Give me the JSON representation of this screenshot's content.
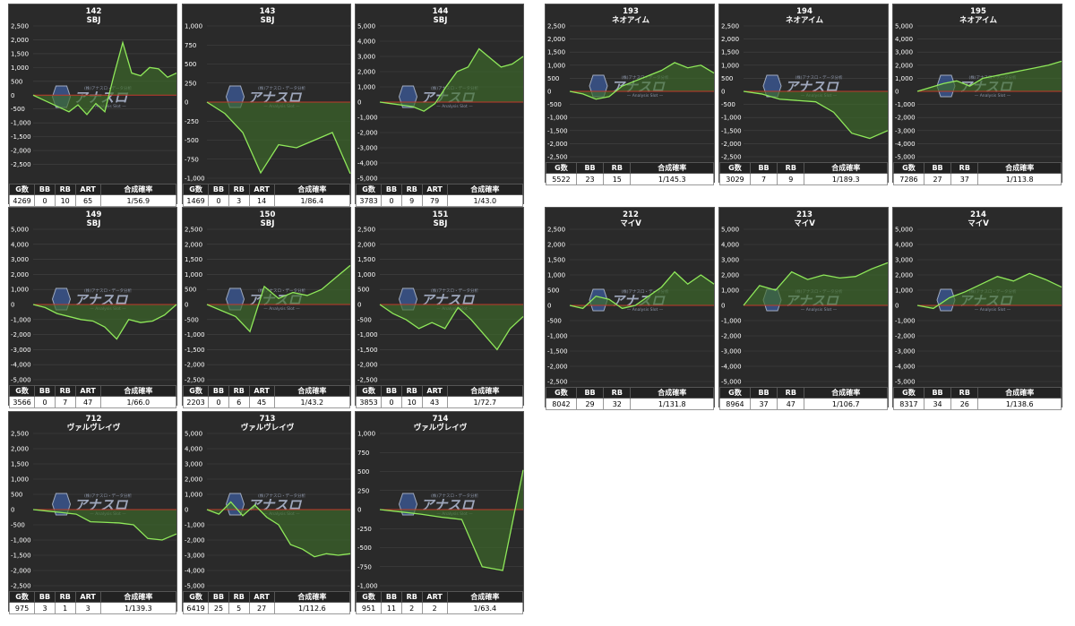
{
  "chart_data": [
    {
      "type": "area",
      "number": "142",
      "model": "SBJ",
      "ylim": [
        -3000,
        2500
      ],
      "yticks": [
        "2,500",
        "2,000",
        "1,500",
        "1,000",
        "500",
        "0",
        "-500",
        "-1,000",
        "-1,500",
        "-2,000",
        "-2,500"
      ],
      "values": [
        0,
        -150,
        -300,
        -450,
        -600,
        -350,
        -700,
        -300,
        -600,
        700,
        1900,
        800,
        700,
        1000,
        950,
        650,
        800
      ],
      "stats": {
        "headers": [
          "G数",
          "BB",
          "RB",
          "ART",
          "合成確率"
        ],
        "values": [
          "4269",
          "0",
          "10",
          "65",
          "1/56.9"
        ]
      }
    },
    {
      "type": "area",
      "number": "143",
      "model": "SBJ",
      "ylim": [
        -1000,
        1000
      ],
      "yticks": [
        "1,000",
        "750",
        "500",
        "250",
        "0",
        "-250",
        "-500",
        "-750",
        "-1,000"
      ],
      "values": [
        0,
        -150,
        -400,
        -930,
        -560,
        -600,
        -500,
        -400,
        -940
      ],
      "stats": {
        "headers": [
          "G数",
          "BB",
          "RB",
          "ART",
          "合成確率"
        ],
        "values": [
          "1469",
          "0",
          "3",
          "14",
          "1/86.4"
        ]
      }
    },
    {
      "type": "area",
      "number": "144",
      "model": "SBJ",
      "ylim": [
        -5000,
        5000
      ],
      "yticks": [
        "5,000",
        "4,000",
        "3,000",
        "2,000",
        "1,000",
        "0",
        "-1,000",
        "-2,000",
        "-3,000",
        "-4,000",
        "-5,000"
      ],
      "values": [
        0,
        -100,
        -200,
        -300,
        -600,
        -100,
        1000,
        2000,
        2300,
        3500,
        2900,
        2300,
        2500,
        3000
      ],
      "stats": {
        "headers": [
          "G数",
          "BB",
          "RB",
          "ART",
          "合成確率"
        ],
        "values": [
          "3783",
          "0",
          "9",
          "79",
          "1/43.0"
        ]
      }
    },
    {
      "type": "area",
      "number": "149",
      "model": "SBJ",
      "ylim": [
        -5000,
        5000
      ],
      "yticks": [
        "5,000",
        "4,000",
        "3,000",
        "2,000",
        "1,000",
        "0",
        "-1,000",
        "-2,000",
        "-3,000",
        "-4,000",
        "-5,000"
      ],
      "values": [
        0,
        -200,
        -600,
        -800,
        -1000,
        -1100,
        -1500,
        -2300,
        -1000,
        -1200,
        -1100,
        -700,
        0
      ],
      "stats": {
        "headers": [
          "G数",
          "BB",
          "RB",
          "ART",
          "合成確率"
        ],
        "values": [
          "3566",
          "0",
          "7",
          "47",
          "1/66.0"
        ]
      }
    },
    {
      "type": "area",
      "number": "150",
      "model": "SBJ",
      "ylim": [
        -2500,
        2500
      ],
      "yticks": [
        "2,500",
        "2,000",
        "1,500",
        "1,000",
        "500",
        "0",
        "-500",
        "-1,000",
        "-1,500",
        "-2,000",
        "-2,500"
      ],
      "values": [
        0,
        -200,
        -400,
        -900,
        600,
        200,
        400,
        300,
        500,
        900,
        1300
      ],
      "stats": {
        "headers": [
          "G数",
          "BB",
          "RB",
          "ART",
          "合成確率"
        ],
        "values": [
          "2203",
          "0",
          "6",
          "45",
          "1/43.2"
        ]
      }
    },
    {
      "type": "area",
      "number": "151",
      "model": "SBJ",
      "ylim": [
        -2500,
        2500
      ],
      "yticks": [
        "2,500",
        "2,000",
        "1,500",
        "1,000",
        "500",
        "0",
        "-500",
        "-1,000",
        "-1,500",
        "-2,000",
        "-2,500"
      ],
      "values": [
        0,
        -300,
        -500,
        -800,
        -600,
        -800,
        -100,
        -500,
        -1000,
        -1500,
        -800,
        -400
      ],
      "stats": {
        "headers": [
          "G数",
          "BB",
          "RB",
          "ART",
          "合成確率"
        ],
        "values": [
          "3853",
          "0",
          "10",
          "43",
          "1/72.7"
        ]
      }
    },
    {
      "type": "area",
      "number": "712",
      "model": "ヴァルヴレイヴ",
      "ylim": [
        -2500,
        2500
      ],
      "yticks": [
        "2,500",
        "2,000",
        "1,500",
        "1,000",
        "500",
        "0",
        "-500",
        "-1,000",
        "-1,500",
        "-2,000",
        "-2,500"
      ],
      "values": [
        0,
        -50,
        -100,
        -150,
        -400,
        -420,
        -440,
        -500,
        -950,
        -1000,
        -800
      ],
      "stats": {
        "headers": [
          "G数",
          "BB",
          "RB",
          "ART",
          "合成確率"
        ],
        "values": [
          "975",
          "3",
          "1",
          "3",
          "1/139.3"
        ]
      }
    },
    {
      "type": "area",
      "number": "713",
      "model": "ヴァルヴレイヴ",
      "ylim": [
        -5000,
        5000
      ],
      "yticks": [
        "5,000",
        "4,000",
        "3,000",
        "2,000",
        "1,000",
        "0",
        "-1,000",
        "-2,000",
        "-3,000",
        "-4,000",
        "-5,000"
      ],
      "values": [
        0,
        -300,
        500,
        -400,
        300,
        -500,
        -1000,
        -2300,
        -2600,
        -3100,
        -2900,
        -3000,
        -2900
      ],
      "stats": {
        "headers": [
          "G数",
          "BB",
          "RB",
          "ART",
          "合成確率"
        ],
        "values": [
          "6419",
          "25",
          "5",
          "27",
          "1/112.6"
        ]
      }
    },
    {
      "type": "area",
      "number": "714",
      "model": "ヴァルヴレイヴ",
      "ylim": [
        -1000,
        1000
      ],
      "yticks": [
        "1,000",
        "750",
        "500",
        "250",
        "0",
        "-250",
        "-500",
        "-750",
        "-1,000"
      ],
      "values": [
        0,
        -30,
        -60,
        -100,
        -130,
        -750,
        -800,
        520
      ],
      "stats": {
        "headers": [
          "G数",
          "BB",
          "RB",
          "ART",
          "合成確率"
        ],
        "values": [
          "951",
          "11",
          "2",
          "2",
          "1/63.4"
        ]
      }
    },
    {
      "type": "area",
      "number": "193",
      "model": "ネオアイム",
      "ylim": [
        -2500,
        2500
      ],
      "yticks": [
        "2,500",
        "2,000",
        "1,500",
        "1,000",
        "500",
        "0",
        "-500",
        "-1,000",
        "-1,500",
        "-2,000",
        "-2,500"
      ],
      "values": [
        0,
        -100,
        -300,
        -200,
        200,
        400,
        600,
        800,
        1100,
        900,
        1000,
        700
      ],
      "stats": {
        "headers": [
          "G数",
          "BB",
          "RB",
          "合成確率"
        ],
        "values": [
          "5522",
          "23",
          "15",
          "1/145.3"
        ]
      }
    },
    {
      "type": "area",
      "number": "194",
      "model": "ネオアイム",
      "ylim": [
        -2500,
        2500
      ],
      "yticks": [
        "2,500",
        "2,000",
        "1,500",
        "1,000",
        "500",
        "0",
        "-500",
        "-1,000",
        "-1,500",
        "-2,000",
        "-2,500"
      ],
      "values": [
        0,
        -100,
        -300,
        -350,
        -400,
        -800,
        -1600,
        -1800,
        -1500
      ],
      "stats": {
        "headers": [
          "G数",
          "BB",
          "RB",
          "合成確率"
        ],
        "values": [
          "3029",
          "7",
          "9",
          "1/189.3"
        ]
      }
    },
    {
      "type": "area",
      "number": "195",
      "model": "ネオアイム",
      "ylim": [
        -5000,
        5000
      ],
      "yticks": [
        "5,000",
        "4,000",
        "3,000",
        "2,000",
        "1,000",
        "0",
        "-1,000",
        "-2,000",
        "-3,000",
        "-4,000",
        "-5,000"
      ],
      "values": [
        0,
        300,
        600,
        800,
        400,
        1000,
        1200,
        1400,
        1600,
        1800,
        2000,
        2300
      ],
      "stats": {
        "headers": [
          "G数",
          "BB",
          "RB",
          "合成確率"
        ],
        "values": [
          "7286",
          "27",
          "37",
          "1/113.8"
        ]
      }
    },
    {
      "type": "area",
      "number": "212",
      "model": "マイV",
      "ylim": [
        -2500,
        2500
      ],
      "yticks": [
        "2,500",
        "2,000",
        "1,500",
        "1,000",
        "500",
        "0",
        "-500",
        "-1,000",
        "-1,500",
        "-2,000",
        "-2,500"
      ],
      "values": [
        0,
        -100,
        300,
        200,
        -100,
        0,
        300,
        600,
        1100,
        700,
        1000,
        700
      ],
      "stats": {
        "headers": [
          "G数",
          "BB",
          "RB",
          "合成確率"
        ],
        "values": [
          "8042",
          "29",
          "32",
          "1/131.8"
        ]
      }
    },
    {
      "type": "area",
      "number": "213",
      "model": "マイV",
      "ylim": [
        -5000,
        5000
      ],
      "yticks": [
        "5,000",
        "4,000",
        "3,000",
        "2,000",
        "1,000",
        "0",
        "-1,000",
        "-2,000",
        "-3,000",
        "-4,000",
        "-5,000"
      ],
      "values": [
        0,
        1300,
        1000,
        2200,
        1700,
        2000,
        1800,
        1900,
        2400,
        2800
      ],
      "stats": {
        "headers": [
          "G数",
          "BB",
          "RB",
          "合成確率"
        ],
        "values": [
          "8964",
          "37",
          "47",
          "1/106.7"
        ]
      }
    },
    {
      "type": "area",
      "number": "214",
      "model": "マイV",
      "ylim": [
        -5000,
        5000
      ],
      "yticks": [
        "5,000",
        "4,000",
        "3,000",
        "2,000",
        "1,000",
        "0",
        "-1,000",
        "-2,000",
        "-3,000",
        "-4,000",
        "-5,000"
      ],
      "values": [
        0,
        -200,
        500,
        900,
        1400,
        1900,
        1600,
        2100,
        1700,
        1200
      ],
      "stats": {
        "headers": [
          "G数",
          "BB",
          "RB",
          "合成確率"
        ],
        "values": [
          "8317",
          "34",
          "26",
          "1/138.6"
        ]
      }
    }
  ],
  "colors": {
    "line": "#8fe85a",
    "fill": "#3d6b2a",
    "zero": "#c0392b",
    "grid": "#444444",
    "bg": "#2a2a2a"
  },
  "watermark": {
    "brand": "アナスロ",
    "sub": "— Analysis Slot —",
    "top": "(株)アナスロ・データ分析"
  }
}
